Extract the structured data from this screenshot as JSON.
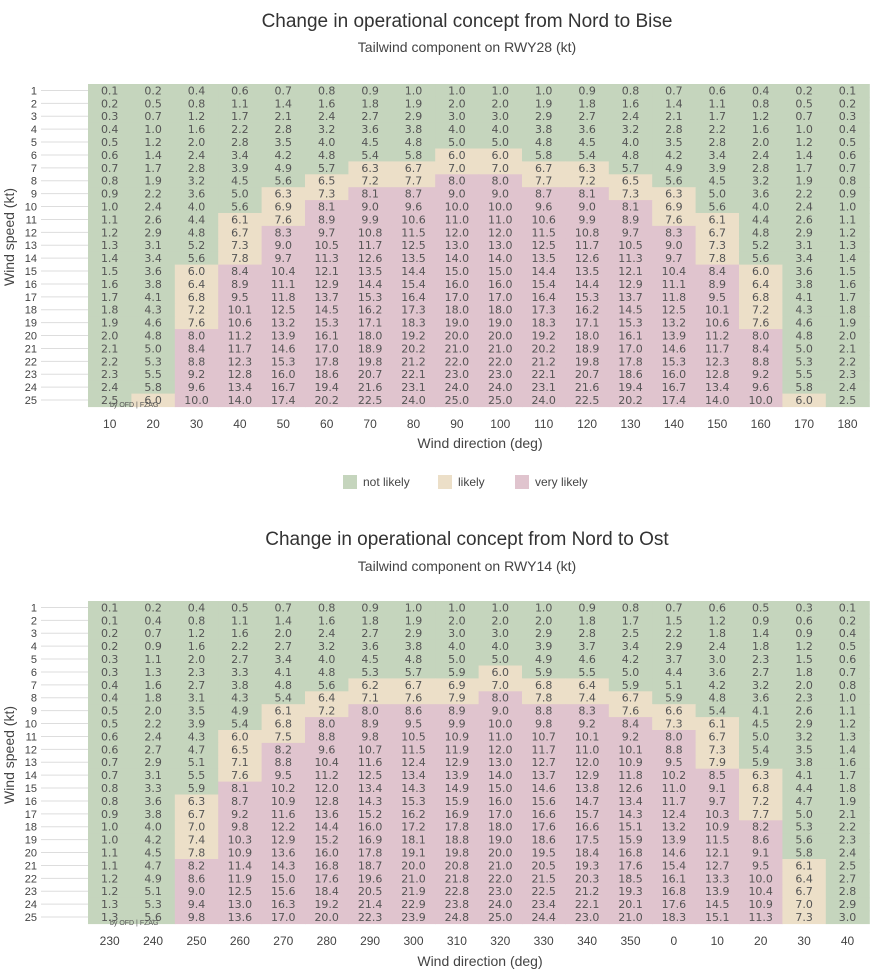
{
  "legend": [
    {
      "label": "not likely",
      "color": "#c5d5bd"
    },
    {
      "label": "likely",
      "color": "#ecdfc8"
    },
    {
      "label": "very likely",
      "color": "#e0c4ce"
    }
  ],
  "chart_data": [
    {
      "type": "heatmap",
      "title": "Change in operational concept from Nord to Bise",
      "subtitle": "Tailwind component on RWY28 (kt)",
      "xlabel": "Wind direction (deg)",
      "ylabel": "Wind speed (kt)",
      "credit": "by OFD | FZAG",
      "x": [
        "10",
        "20",
        "30",
        "40",
        "50",
        "60",
        "70",
        "80",
        "90",
        "100",
        "110",
        "120",
        "130",
        "140",
        "150",
        "160",
        "170",
        "180"
      ],
      "y": [
        "1",
        "2",
        "3",
        "4",
        "5",
        "6",
        "7",
        "8",
        "9",
        "10",
        "11",
        "12",
        "13",
        "14",
        "15",
        "16",
        "17",
        "18",
        "19",
        "20",
        "21",
        "22",
        "23",
        "24",
        "25"
      ],
      "unit_step": [
        0.0982,
        0.2401,
        0.4019,
        0.5585,
        0.6946,
        0.8074,
        0.8984,
        0.9619,
        0.9987,
        0.9987,
        0.9619,
        0.8984,
        0.8074,
        0.6946,
        0.5585,
        0.4019,
        0.2401,
        0.0982
      ],
      "thresholds": [
        6,
        8
      ],
      "categories": [
        "not likely",
        "likely",
        "very likely"
      ]
    },
    {
      "type": "heatmap",
      "title": "Change in operational concept from Nord to Ost",
      "subtitle": "Tailwind component on RWY14 (kt)",
      "xlabel": "Wind direction (deg)",
      "ylabel": "Wind speed (kt)",
      "credit": "by OFD | FZAG",
      "x": [
        "230",
        "240",
        "250",
        "260",
        "270",
        "280",
        "290",
        "300",
        "310",
        "320",
        "330",
        "340",
        "350",
        "0",
        "10",
        "20",
        "30",
        "40"
      ],
      "y": [
        "1",
        "2",
        "3",
        "4",
        "5",
        "6",
        "7",
        "8",
        "9",
        "10",
        "11",
        "12",
        "13",
        "14",
        "15",
        "16",
        "17",
        "18",
        "19",
        "20",
        "21",
        "22",
        "23",
        "24",
        "25"
      ],
      "unit_step": [
        0.0528,
        0.2226,
        0.3914,
        0.5428,
        0.6797,
        0.7997,
        0.8914,
        0.9543,
        0.9912,
        0.998,
        0.9764,
        0.9208,
        0.8393,
        0.7318,
        0.6052,
        0.4528,
        0.2924,
        0.1208
      ],
      "thresholds": [
        6,
        8
      ],
      "categories": [
        "not likely",
        "likely",
        "very likely"
      ]
    }
  ]
}
